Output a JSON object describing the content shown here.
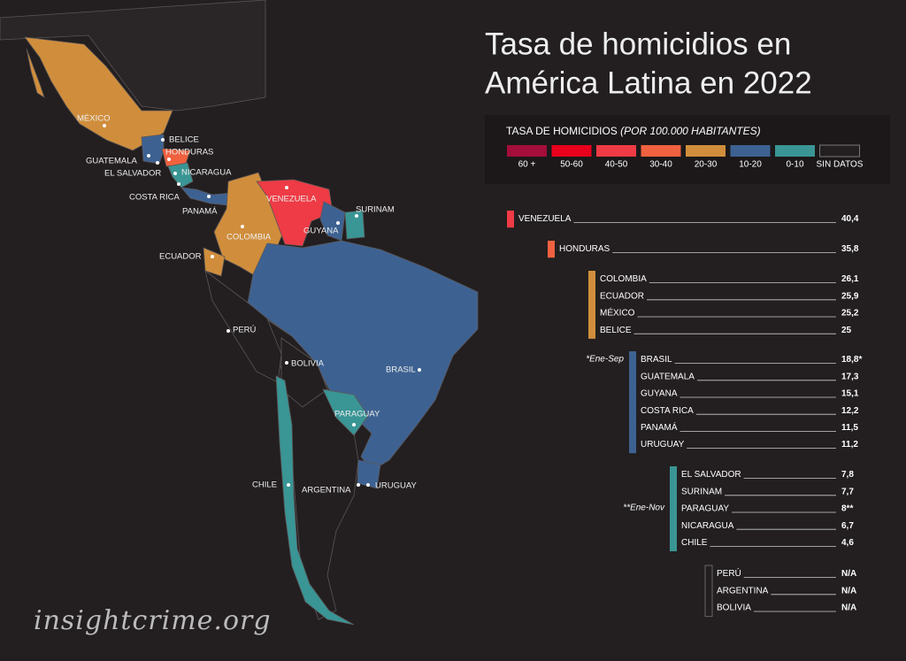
{
  "title": [
    "Tasa de homicidios en",
    "América Latina en 2022"
  ],
  "legend": {
    "title": "TASA DE HOMICIDIOS",
    "subtitle": "(POR 100.000 HABITANTES)",
    "items": [
      {
        "label": "60 +",
        "color": "#a50d3a"
      },
      {
        "label": "50-60",
        "color": "#e8001c"
      },
      {
        "label": "40-50",
        "color": "#ee3b45"
      },
      {
        "label": "30-40",
        "color": "#f0613f"
      },
      {
        "label": "20-30",
        "color": "#d08e3c"
      },
      {
        "label": "10-20",
        "color": "#3d6292"
      },
      {
        "label": "0-10",
        "color": "#3a9595"
      },
      {
        "label": "SIN DATOS",
        "color": "#231f20"
      }
    ]
  },
  "map_labels": [
    "MÉXICO",
    "BELICE",
    "GUATEMALA",
    "HONDURAS",
    "EL SALVADOR",
    "NICARAGUA",
    "COSTA RICA",
    "PANAMÁ",
    "VENEZUELA",
    "COLOMBIA",
    "GUYANA",
    "SURINAM",
    "ECUADOR",
    "PERÚ",
    "BOLIVIA",
    "BRASIL",
    "PARAGUAY",
    "CHILE",
    "ARGENTINA",
    "URUGUAY"
  ],
  "ranking": [
    {
      "legend_item": 2,
      "rows": [
        {
          "name": "VENEZUELA",
          "value": "40,4"
        }
      ]
    },
    {
      "legend_item": 3,
      "rows": [
        {
          "name": "HONDURAS",
          "value": "35,8"
        }
      ]
    },
    {
      "legend_item": 4,
      "rows": [
        {
          "name": "COLOMBIA",
          "value": "26,1"
        },
        {
          "name": "ECUADOR",
          "value": "25,9"
        },
        {
          "name": "MÉXICO",
          "value": "25,2"
        },
        {
          "name": "BELICE",
          "value": "25"
        }
      ]
    },
    {
      "legend_item": 5,
      "note": "*Ene-Sep",
      "rows": [
        {
          "name": "BRASIL",
          "value": "18,8*"
        },
        {
          "name": "GUATEMALA",
          "value": "17,3"
        },
        {
          "name": "GUYANA",
          "value": "15,1"
        },
        {
          "name": "COSTA RICA",
          "value": "12,2"
        },
        {
          "name": "PANAMÁ",
          "value": "11,5"
        },
        {
          "name": "URUGUAY",
          "value": "11,2"
        }
      ]
    },
    {
      "legend_item": 6,
      "note": "**Ene-Nov",
      "rows": [
        {
          "name": "EL SALVADOR",
          "value": "7,8"
        },
        {
          "name": "SURINAM",
          "value": "7,7"
        },
        {
          "name": "PARAGUAY",
          "value": "8**"
        },
        {
          "name": "NICARAGUA",
          "value": "6,7"
        },
        {
          "name": "CHILE",
          "value": "4,6"
        }
      ]
    },
    {
      "legend_item": 7,
      "rows": [
        {
          "name": "PERÚ",
          "value": "N/A"
        },
        {
          "name": "ARGENTINA",
          "value": "N/A"
        },
        {
          "name": "BOLIVIA",
          "value": "N/A"
        }
      ]
    }
  ],
  "footer": "insightcrime.org"
}
